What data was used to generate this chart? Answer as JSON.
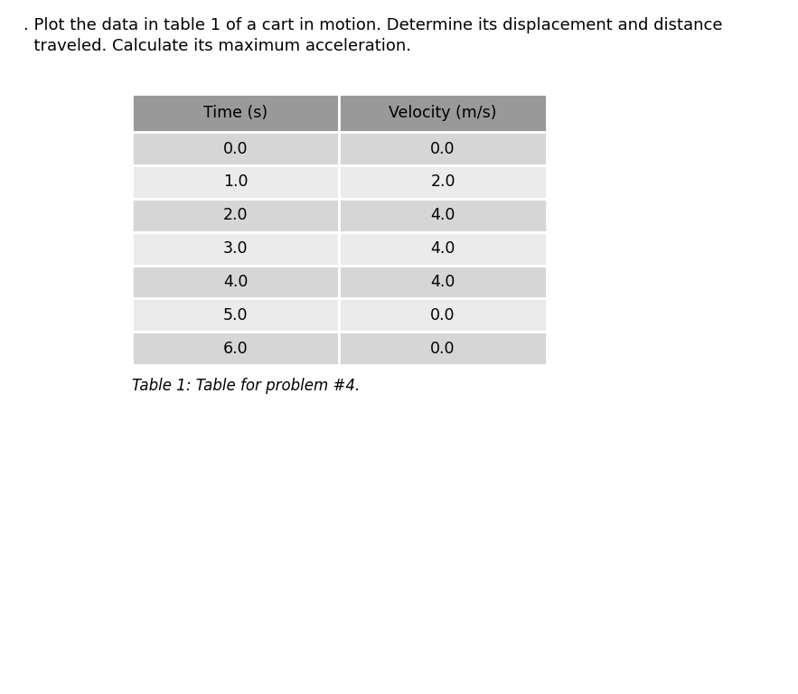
{
  "title_line1": ". Plot the data in table 1 of a cart in motion. Determine its displacement and distance",
  "title_line2": "  traveled. Calculate its maximum acceleration.",
  "col_headers": [
    "Time (s)",
    "Velocity (m/s)"
  ],
  "rows": [
    [
      "0.0",
      "0.0"
    ],
    [
      "1.0",
      "2.0"
    ],
    [
      "2.0",
      "4.0"
    ],
    [
      "3.0",
      "4.0"
    ],
    [
      "4.0",
      "4.0"
    ],
    [
      "5.0",
      "0.0"
    ],
    [
      "6.0",
      "0.0"
    ]
  ],
  "caption": "Table 1: Table for problem #4.",
  "header_bg": "#999999",
  "row_bg_odd": "#d6d6d6",
  "row_bg_even": "#ebebeb",
  "background_color": "#ffffff",
  "title_fontsize": 13.0,
  "header_fontsize": 12.5,
  "cell_fontsize": 12.5,
  "caption_fontsize": 12.0
}
